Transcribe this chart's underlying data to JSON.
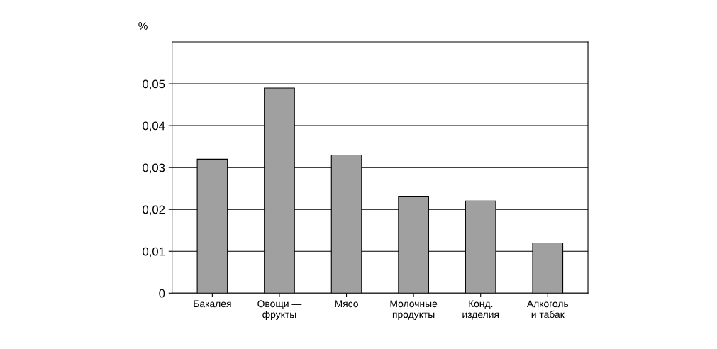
{
  "chart_data": {
    "type": "bar",
    "ylabel": "%",
    "categories": [
      "Бакалея",
      "Овощи —\nфрукты",
      "Мясо",
      "Молочные\nпродукты",
      "Конд.\nизделия",
      "Алкоголь\nи табак"
    ],
    "values": [
      0.032,
      0.049,
      0.033,
      0.023,
      0.022,
      0.012
    ],
    "color": "#a0a0a0",
    "ylim": [
      0,
      0.06
    ],
    "yticks": [
      {
        "value": 0,
        "label": "0"
      },
      {
        "value": 0.01,
        "label": "0,01"
      },
      {
        "value": 0.02,
        "label": "0,02"
      },
      {
        "value": 0.03,
        "label": "0,03"
      },
      {
        "value": 0.04,
        "label": "0,04"
      },
      {
        "value": 0.05,
        "label": "0,05"
      }
    ],
    "grid": "y"
  }
}
